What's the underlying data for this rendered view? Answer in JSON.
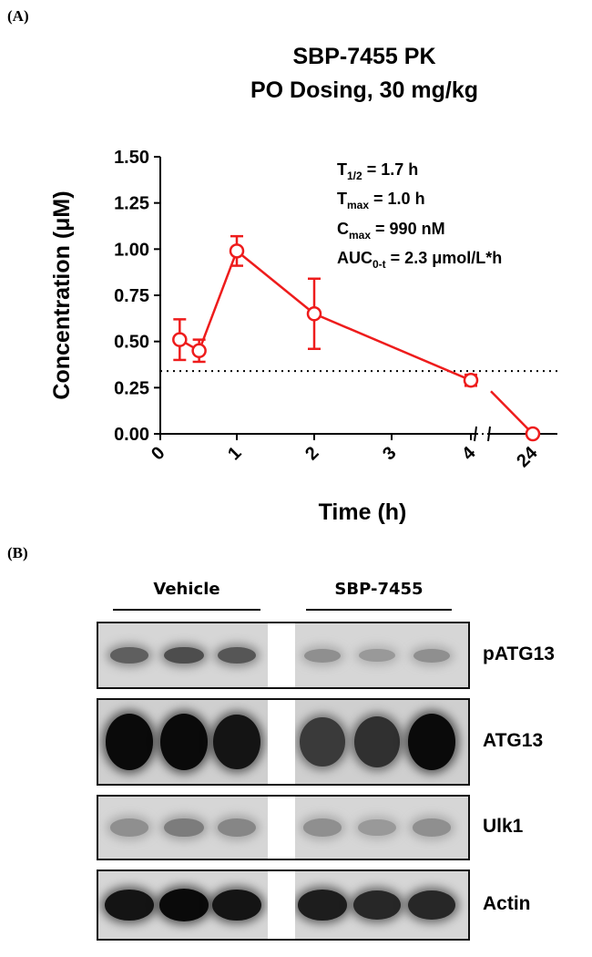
{
  "panels": {
    "a": "(A)",
    "b": "(B)"
  },
  "chart_data": {
    "type": "line",
    "title": [
      "SBP-7455 PK",
      "PO Dosing, 30 mg/kg"
    ],
    "xlabel": "Time (h)",
    "ylabel": "Concentration (μM)",
    "x_ticks": [
      "0",
      "1",
      "2",
      "3",
      "4",
      "24"
    ],
    "y_ticks": [
      "0.00",
      "0.25",
      "0.50",
      "0.75",
      "1.00",
      "1.25",
      "1.50"
    ],
    "ylim": [
      0,
      1.5
    ],
    "axis_break": "between 4 and 24",
    "series": [
      {
        "color": "#ee1c1c",
        "points": [
          {
            "x": 0.25,
            "y": 0.51,
            "err": 0.11
          },
          {
            "x": 0.5,
            "y": 0.45,
            "err": 0.06
          },
          {
            "x": 1,
            "y": 0.99,
            "err": 0.08
          },
          {
            "x": 2,
            "y": 0.65,
            "err": 0.19
          },
          {
            "x": 4,
            "y": 0.29,
            "err": 0.03
          },
          {
            "x": 24,
            "y": 0.0,
            "err": 0.0
          }
        ]
      }
    ],
    "reference_line": {
      "y": 0.34,
      "style": "dotted"
    },
    "annotations": {
      "t_half_main": "T",
      "t_half_sub": "1/2",
      "t_half_val": " = 1.7 h",
      "tmax_main": "T",
      "tmax_sub": "max",
      "tmax_val": " = 1.0 h",
      "cmax_main": "C",
      "cmax_sub": "max",
      "cmax_val": " = 990 nM",
      "auc_main": "AUC",
      "auc_sub": "0-t",
      "auc_val": " = 2.3 μmol/L*h"
    }
  },
  "blot": {
    "groups": [
      "Vehicle",
      "SBP-7455"
    ],
    "rows": [
      {
        "label": "pATG13",
        "intensities": [
          0.55,
          0.65,
          0.6,
          0.3,
          0.25,
          0.3
        ]
      },
      {
        "label": "ATG13",
        "intensities": [
          1.0,
          1.0,
          0.95,
          0.75,
          0.8,
          1.0
        ]
      },
      {
        "label": "Ulk1",
        "intensities": [
          0.3,
          0.4,
          0.35,
          0.3,
          0.25,
          0.3
        ]
      },
      {
        "label": "Actin",
        "intensities": [
          0.95,
          1.0,
          0.95,
          0.9,
          0.85,
          0.85
        ]
      }
    ]
  }
}
